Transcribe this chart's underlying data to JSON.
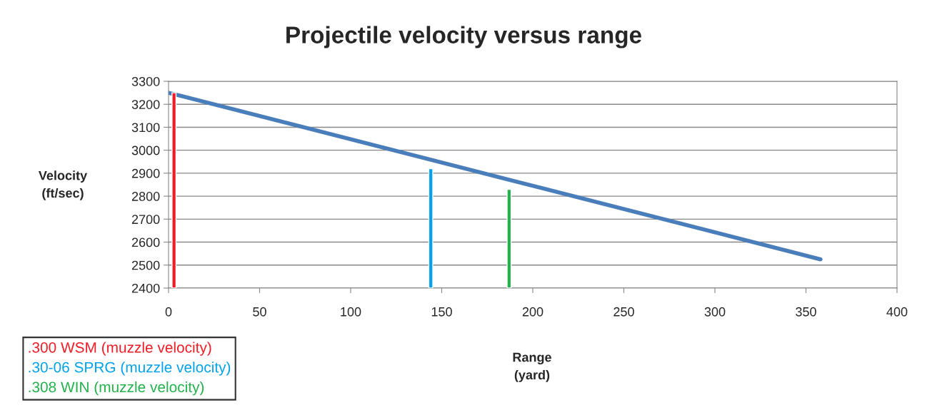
{
  "chart_data": {
    "type": "line",
    "title": "Projectile velocity versus range",
    "xlabel": "Range\n(yard)",
    "ylabel": "Velocity\n(ft/sec)",
    "series": [
      {
        "color": "#4a7ebb",
        "x": [
          0,
          358
        ],
        "values": [
          3250,
          2525
        ]
      },
      {
        "type": "bar",
        "name": ".300 WSM (muzzle velocity)",
        "color": "#ee1c25",
        "x": [
          3
        ],
        "values": [
          3250
        ]
      },
      {
        "type": "bar",
        "name": ".30-06 SPRG (muzzle velocity)",
        "color": "#00a2e8",
        "x": [
          144
        ],
        "values": [
          2920
        ]
      },
      {
        "type": "bar",
        "name": ".308 WIN (muzzle velocity)",
        "color": "#22b14c",
        "x": [
          187
        ],
        "values": [
          2830
        ]
      }
    ],
    "xlim": [
      0,
      400
    ],
    "xticks": [
      0,
      50,
      100,
      150,
      200,
      250,
      300,
      350,
      400
    ],
    "ylim": [
      2400,
      3300
    ],
    "yticks": [
      2400,
      2500,
      2600,
      2700,
      2800,
      2900,
      3000,
      3100,
      3200,
      3300
    ],
    "grid": "y",
    "legend": "bottom left"
  }
}
